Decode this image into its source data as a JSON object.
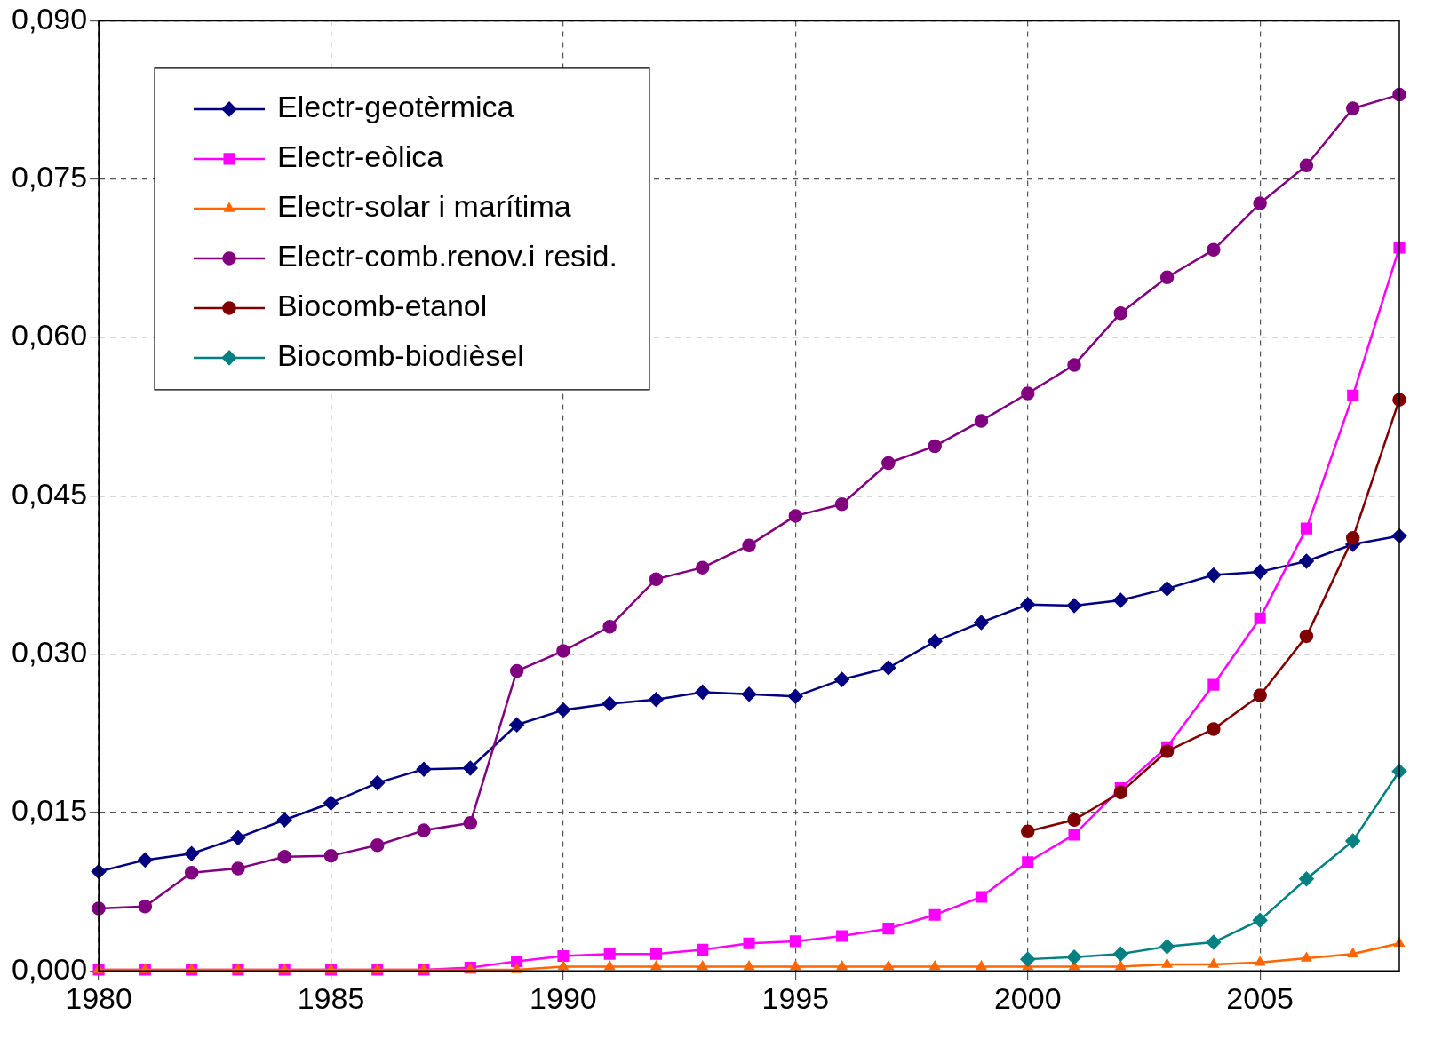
{
  "chart_data": {
    "type": "line",
    "x": [
      1980,
      1981,
      1982,
      1983,
      1984,
      1985,
      1986,
      1987,
      1988,
      1989,
      1990,
      1991,
      1992,
      1993,
      1994,
      1995,
      1996,
      1997,
      1998,
      1999,
      2000,
      2001,
      2002,
      2003,
      2004,
      2005,
      2006,
      2007,
      2008
    ],
    "xlim": [
      1980,
      2008
    ],
    "xticks": [
      1980,
      1985,
      1990,
      1995,
      2000,
      2005
    ],
    "ylim": [
      0,
      0.09
    ],
    "yticks": [
      {
        "value": 0,
        "label": "0,000"
      },
      {
        "value": 0.015,
        "label": "0,015"
      },
      {
        "value": 0.03,
        "label": "0,030"
      },
      {
        "value": 0.045,
        "label": "0,045"
      },
      {
        "value": 0.06,
        "label": "0,060"
      },
      {
        "value": 0.075,
        "label": "0,075"
      },
      {
        "value": 0.09,
        "label": "0,090"
      }
    ],
    "grid": true,
    "legend": "top left",
    "line_style": "solid",
    "series": [
      {
        "name": "Electr-geotèrmica",
        "color": "#000080",
        "marker": "diamond",
        "values": [
          0.0094,
          0.0105,
          0.0111,
          0.0126,
          0.0143,
          0.0159,
          0.0178,
          0.0191,
          0.0192,
          0.0233,
          0.0247,
          0.0253,
          0.0257,
          0.0264,
          0.0262,
          0.026,
          0.0276,
          0.0287,
          0.0312,
          0.033,
          0.0347,
          0.0346,
          0.0351,
          0.0362,
          0.0375,
          0.0378,
          0.0388,
          0.0404,
          0.0412
        ]
      },
      {
        "name": "Electr-eòlica",
        "color": "#ff00ff",
        "marker": "square",
        "values": [
          0.0001,
          0.0001,
          0.0001,
          0.0001,
          0.0001,
          0.0001,
          0.0001,
          0.0001,
          0.0003,
          0.0009,
          0.0014,
          0.0016,
          0.0016,
          0.002,
          0.0026,
          0.0028,
          0.0033,
          0.004,
          0.0053,
          0.007,
          0.0103,
          0.0129,
          0.0173,
          0.0212,
          0.0271,
          0.0334,
          0.0419,
          0.0545,
          0.0685
        ]
      },
      {
        "name": "Electr-solar i marítima",
        "color": "#ff6600",
        "marker": "triangle",
        "values": [
          0.0001,
          0.0001,
          0.0001,
          0.0001,
          0.0001,
          0.0001,
          0.0001,
          0.0001,
          0.0001,
          0.0001,
          0.0004,
          0.0004,
          0.0004,
          0.0004,
          0.0004,
          0.0004,
          0.0004,
          0.0004,
          0.0004,
          0.0004,
          0.0004,
          0.0004,
          0.0004,
          0.0006,
          0.0006,
          0.0008,
          0.0012,
          0.0016,
          0.0026
        ]
      },
      {
        "name": "Electr-comb.renov.i resid.",
        "color": "#800080",
        "marker": "circle",
        "values": [
          0.0059,
          0.0061,
          0.0093,
          0.0097,
          0.0108,
          0.0109,
          0.0119,
          0.0133,
          0.014,
          0.0284,
          0.0303,
          0.0326,
          0.0371,
          0.0382,
          0.0403,
          0.0431,
          0.0442,
          0.0481,
          0.0497,
          0.0521,
          0.0547,
          0.0574,
          0.0623,
          0.0657,
          0.0683,
          0.0727,
          0.0763,
          0.0817,
          0.083
        ]
      },
      {
        "name": "Biocomb-etanol",
        "color": "#800000",
        "marker": "circle",
        "x": [
          2000,
          2001,
          2002,
          2003,
          2004,
          2005,
          2006,
          2007,
          2008
        ],
        "values": [
          0.0132,
          0.0143,
          0.0169,
          0.0208,
          0.0229,
          0.0261,
          0.0317,
          0.041,
          0.0541
        ]
      },
      {
        "name": "Biocomb-biodièsel",
        "color": "#008080",
        "marker": "diamond",
        "x": [
          2000,
          2001,
          2002,
          2003,
          2004,
          2005,
          2006,
          2007,
          2008
        ],
        "values": [
          0.0011,
          0.0013,
          0.0016,
          0.0023,
          0.0027,
          0.0048,
          0.0087,
          0.0123,
          0.0189
        ]
      }
    ]
  }
}
